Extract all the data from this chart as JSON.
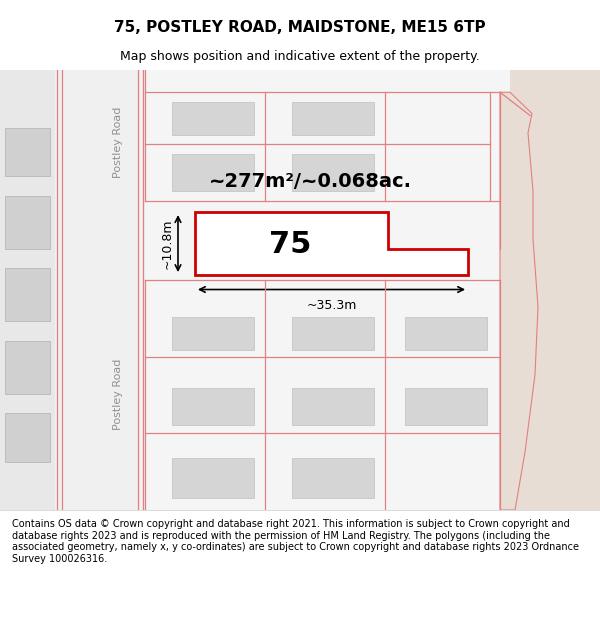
{
  "title": "75, POSTLEY ROAD, MAIDSTONE, ME15 6TP",
  "subtitle": "Map shows position and indicative extent of the property.",
  "footer": "Contains OS data © Crown copyright and database right 2021. This information is subject to Crown copyright and database rights 2023 and is reproduced with the permission of HM Land Registry. The polygons (including the associated geometry, namely x, y co-ordinates) are subject to Crown copyright and database rights 2023 Ordnance Survey 100026316.",
  "map_bg": "#f7f0eb",
  "plot_fill": "#f5f5f5",
  "plot_outline": "#e08080",
  "highlight_outline": "#cc0000",
  "highlight_fill": "#ffffff",
  "area_label": "~277m²/~0.068ac.",
  "number_label": "75",
  "width_label": "~35.3m",
  "height_label": "~10.8m",
  "title_fontsize": 11,
  "subtitle_fontsize": 9,
  "footer_fontsize": 7
}
